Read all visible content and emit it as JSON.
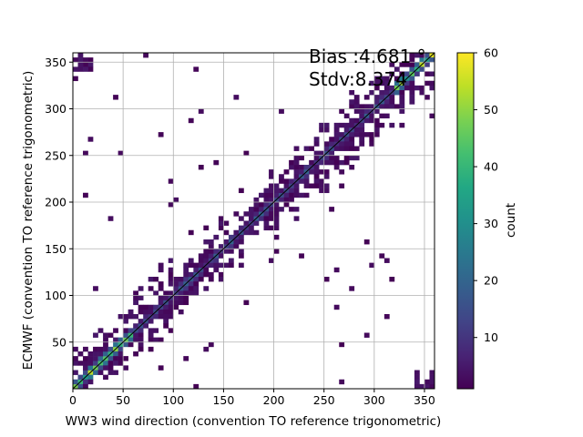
{
  "chart_data": {
    "type": "heatmap",
    "title": "",
    "xlabel": "WW3 wind direction (convention TO reference trigonometric)",
    "ylabel": "ECMWF (convention TO reference trigonometric)",
    "xlim": [
      0,
      360
    ],
    "ylim": [
      0,
      360
    ],
    "x_ticks": [
      0,
      50,
      100,
      150,
      200,
      250,
      300,
      350
    ],
    "y_ticks": [
      50,
      100,
      150,
      200,
      250,
      300,
      350
    ],
    "grid": true,
    "bin_size": 5,
    "colormap": "viridis",
    "colorbar": {
      "label": "count",
      "min": 1,
      "max": 60,
      "ticks": [
        10,
        20,
        30,
        40,
        50,
        60
      ]
    },
    "annotations": [
      "Bias :4.681 °",
      "Stdv:8.374"
    ],
    "reference_line": "y = x",
    "description_of_density": "counts concentrated along the diagonal y = x, highest (up to ~60) near 0-50 and 330-360 degrees, with scattered low counts off-diagonal and wrap-around clusters near (0,350) and (350,0)"
  }
}
